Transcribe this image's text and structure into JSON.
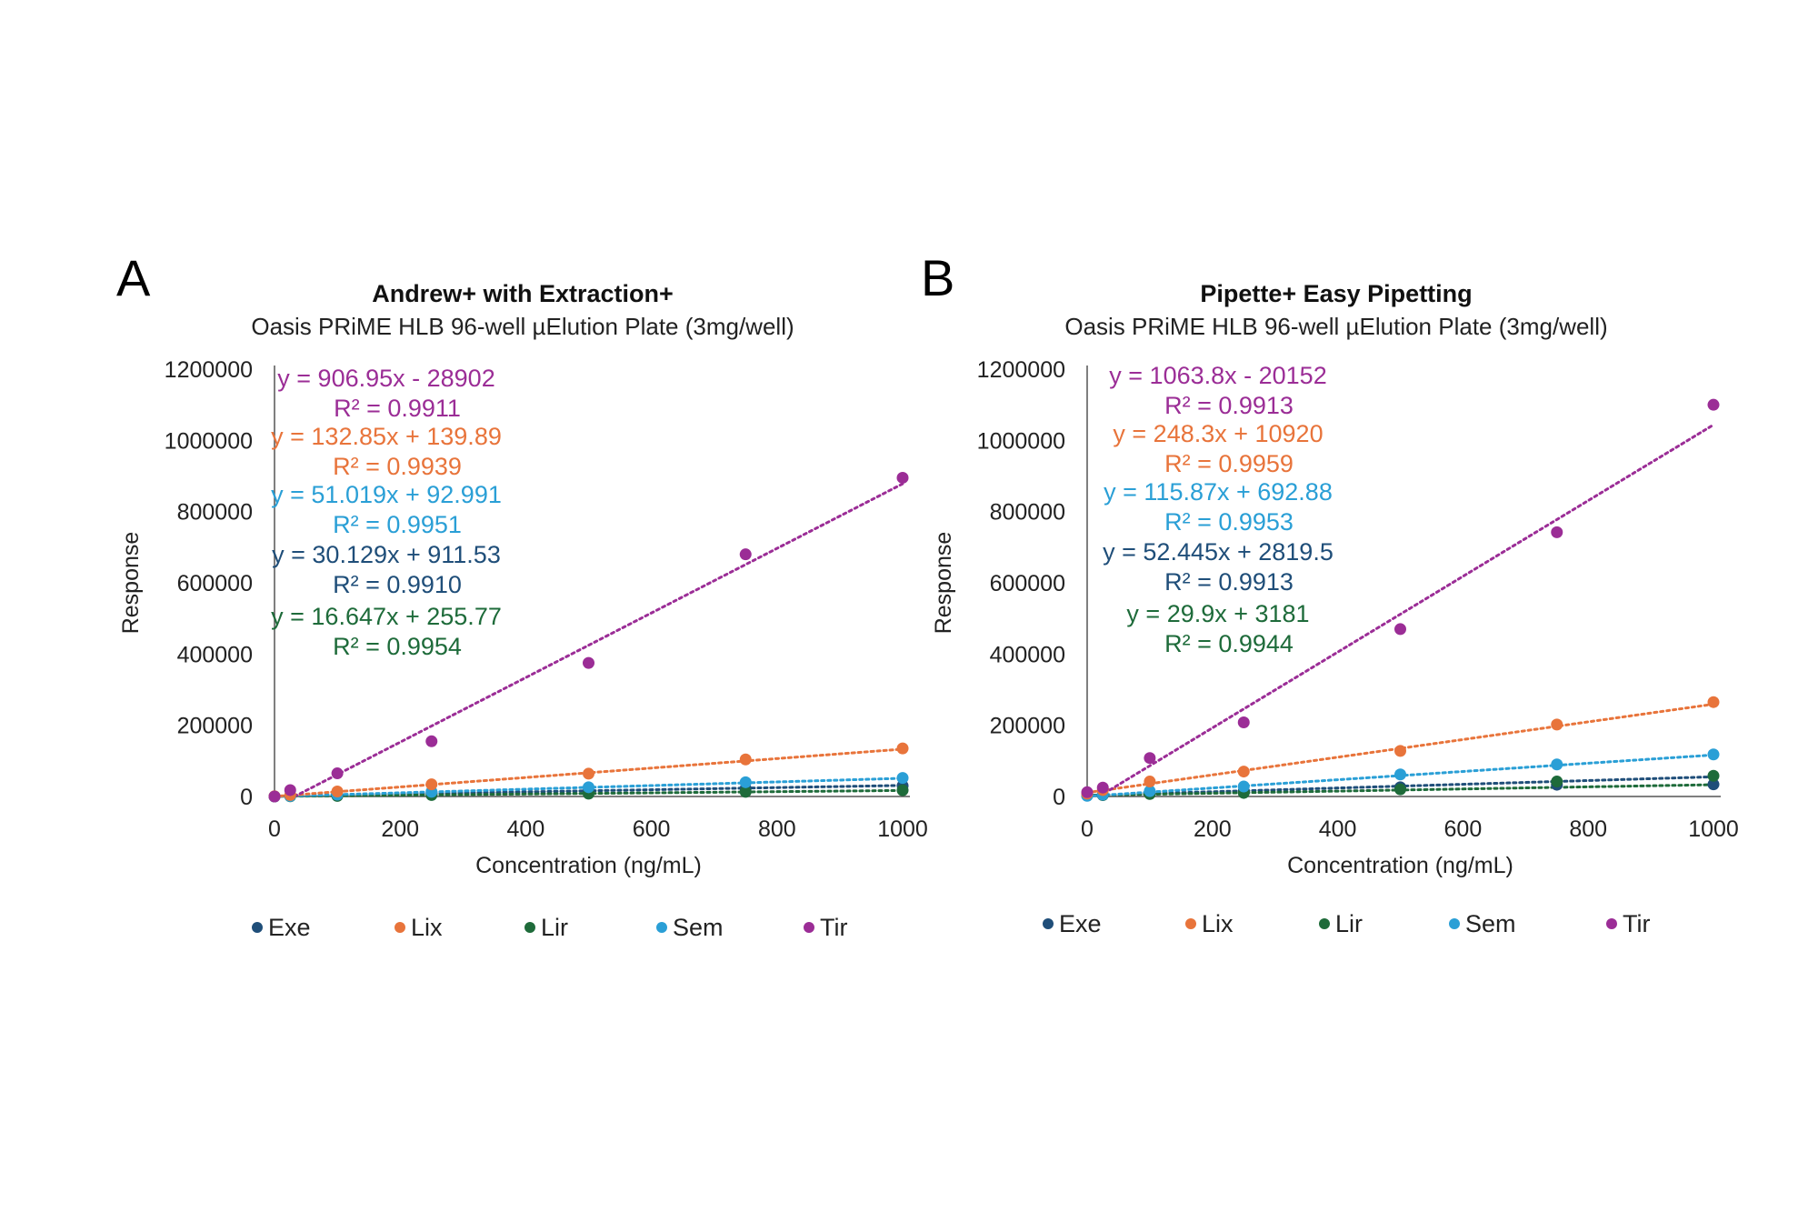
{
  "chart_data": [
    {
      "type": "scatter",
      "panel_label": "A",
      "title": "Andrew+ with Extraction+",
      "subtitle": "Oasis PRiME HLB 96-well µElution Plate (3mg/well)",
      "xlabel": "Concentration (ng/mL)",
      "ylabel": "Response",
      "xlim": [
        0,
        1000
      ],
      "ylim": [
        0,
        1200000
      ],
      "xticks": [
        "0",
        "200",
        "400",
        "600",
        "800",
        "1000"
      ],
      "yticks": [
        "0",
        "200000",
        "400000",
        "600000",
        "800000",
        "1000000",
        "1200000"
      ],
      "trendline": "linear, dotted",
      "legend_position": "bottom",
      "series": [
        {
          "name": "Exe",
          "color": "#1f4e79",
          "x": [
            0,
            25,
            100,
            250,
            500,
            750,
            1000
          ],
          "y": [
            0,
            1500,
            3500,
            8500,
            16000,
            22000,
            30000
          ]
        },
        {
          "name": "Lix",
          "color": "#e8743b",
          "x": [
            0,
            25,
            100,
            250,
            500,
            750,
            1000
          ],
          "y": [
            500,
            4000,
            14000,
            34000,
            64000,
            104000,
            135000
          ]
        },
        {
          "name": "Lir",
          "color": "#1e6b3a",
          "x": [
            0,
            25,
            100,
            250,
            500,
            750,
            1000
          ],
          "y": [
            0,
            500,
            1500,
            4000,
            8000,
            13000,
            17500
          ]
        },
        {
          "name": "Sem",
          "color": "#2a9fd6",
          "x": [
            0,
            25,
            100,
            250,
            500,
            750,
            1000
          ],
          "y": [
            0,
            1200,
            5000,
            13000,
            26000,
            40000,
            52000
          ]
        },
        {
          "name": "Tir",
          "color": "#9b2d96",
          "x": [
            0,
            25,
            100,
            250,
            500,
            750,
            1000
          ],
          "y": [
            0,
            18000,
            65000,
            155000,
            375000,
            680000,
            895000
          ]
        }
      ],
      "equations": [
        {
          "series": "Tir",
          "eq": "y = 906.95x - 28902",
          "r2": "R² = 0.9911"
        },
        {
          "series": "Lix",
          "eq": "y = 132.85x + 139.89",
          "r2": "R² = 0.9939"
        },
        {
          "series": "Sem",
          "eq": "y = 51.019x + 92.991",
          "r2": "R² = 0.9951"
        },
        {
          "series": "Exe",
          "eq": "y = 30.129x + 911.53",
          "r2": "R² = 0.9910"
        },
        {
          "series": "Lir",
          "eq": "y = 16.647x + 255.77",
          "r2": "R² = 0.9954"
        }
      ],
      "fits": {
        "Tir": {
          "slope": 906.95,
          "intercept": -28902
        },
        "Lix": {
          "slope": 132.85,
          "intercept": 139.89
        },
        "Sem": {
          "slope": 51.019,
          "intercept": 92.991
        },
        "Exe": {
          "slope": 30.129,
          "intercept": 911.53
        },
        "Lir": {
          "slope": 16.647,
          "intercept": 255.77
        }
      }
    },
    {
      "type": "scatter",
      "panel_label": "B",
      "title": "Pipette+ Easy Pipetting",
      "subtitle": "Oasis PRiME HLB 96-well µElution Plate (3mg/well)",
      "xlabel": "Concentration (ng/mL)",
      "ylabel": "Response",
      "xlim": [
        0,
        1000
      ],
      "ylim": [
        0,
        1200000
      ],
      "xticks": [
        "0",
        "200",
        "400",
        "600",
        "800",
        "1000"
      ],
      "yticks": [
        "0",
        "200000",
        "400000",
        "600000",
        "800000",
        "1000000",
        "1200000"
      ],
      "trendline": "linear, dotted",
      "legend_position": "bottom",
      "series": [
        {
          "name": "Exe",
          "color": "#1f4e79",
          "x": [
            0,
            25,
            100,
            250,
            500,
            750,
            1000
          ],
          "y": [
            2500,
            4000,
            8000,
            15000,
            26000,
            33000,
            34000
          ]
        },
        {
          "name": "Lix",
          "color": "#e8743b",
          "x": [
            0,
            25,
            100,
            250,
            500,
            750,
            1000
          ],
          "y": [
            8000,
            18000,
            42000,
            70000,
            128000,
            202000,
            265000
          ]
        },
        {
          "name": "Lir",
          "color": "#1e6b3a",
          "x": [
            0,
            25,
            100,
            250,
            500,
            750,
            1000
          ],
          "y": [
            3000,
            4000,
            7000,
            10000,
            20000,
            42000,
            58000
          ]
        },
        {
          "name": "Sem",
          "color": "#2a9fd6",
          "x": [
            0,
            25,
            100,
            250,
            500,
            750,
            1000
          ],
          "y": [
            2000,
            5000,
            15000,
            28000,
            62000,
            90000,
            118000
          ]
        },
        {
          "name": "Tir",
          "color": "#9b2d96",
          "x": [
            0,
            25,
            100,
            250,
            500,
            750,
            1000
          ],
          "y": [
            12000,
            25000,
            108000,
            208000,
            470000,
            742000,
            1100000
          ]
        }
      ],
      "equations": [
        {
          "series": "Tir",
          "eq": "y = 1063.8x - 20152",
          "r2": "R² = 0.9913"
        },
        {
          "series": "Lix",
          "eq": "y = 248.3x + 10920",
          "r2": "R² = 0.9959"
        },
        {
          "series": "Sem",
          "eq": "y = 115.87x + 692.88",
          "r2": "R² = 0.9953"
        },
        {
          "series": "Exe",
          "eq": "y = 52.445x + 2819.5",
          "r2": "R² = 0.9913"
        },
        {
          "series": "Lir",
          "eq": "y = 29.9x + 3181",
          "r2": "R² = 0.9944"
        }
      ],
      "fits": {
        "Tir": {
          "slope": 1063.8,
          "intercept": -20152
        },
        "Lix": {
          "slope": 248.3,
          "intercept": 10920
        },
        "Sem": {
          "slope": 115.87,
          "intercept": 692.88
        },
        "Exe": {
          "slope": 52.445,
          "intercept": 2819.5
        },
        "Lir": {
          "slope": 29.9,
          "intercept": 3181
        }
      }
    }
  ]
}
